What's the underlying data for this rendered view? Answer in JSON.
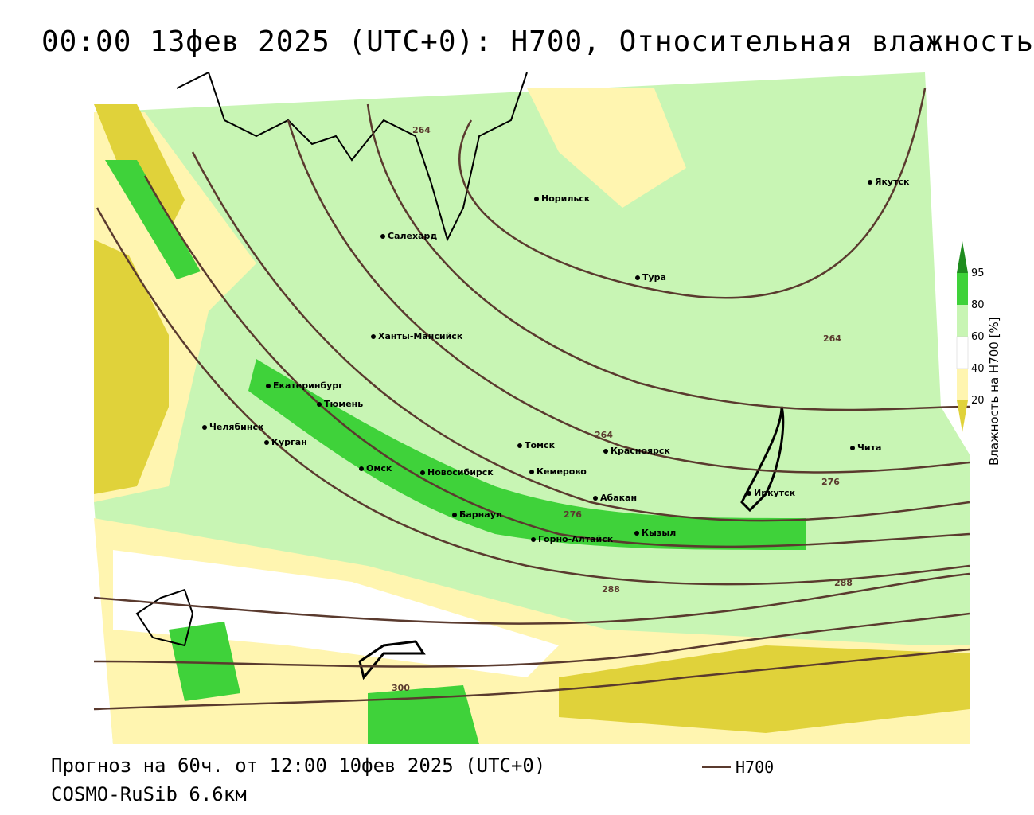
{
  "title": "00:00 13фев 2025 (UTC+0): H700, Относительная влажность",
  "legend": {
    "title": "Влажность на H700 [%]",
    "ticks": [
      "95",
      "80",
      "60",
      "40",
      "20"
    ],
    "colors": {
      "very_dry": "#e0d23a",
      "dry": "#fff5b0",
      "medium": "#ffffff",
      "moist": "#c8f5b4",
      "wet": "#3fd23a",
      "very_wet": "#1f8c1f"
    }
  },
  "cities": [
    "Якутск",
    "Норильск",
    "Салехард",
    "Тура",
    "Ханты-Мансийск",
    "Екатеринбург",
    "Тюмень",
    "Челябинск",
    "Курган",
    "Омск",
    "Новосибирск",
    "Томск",
    "Кемерово",
    "Красноярск",
    "Барнаул",
    "Абакан",
    "Горно-Алтайск",
    "Кызыл",
    "Иркутск",
    "Чита"
  ],
  "contour_labels": [
    "264",
    "264",
    "264",
    "276",
    "276",
    "288",
    "288",
    "300"
  ],
  "footer": {
    "forecast": "Прогноз на 60ч. от 12:00 10фев 2025 (UTC+0)",
    "model": "COSMO-RuSib 6.6км",
    "contour_key": "H700"
  }
}
